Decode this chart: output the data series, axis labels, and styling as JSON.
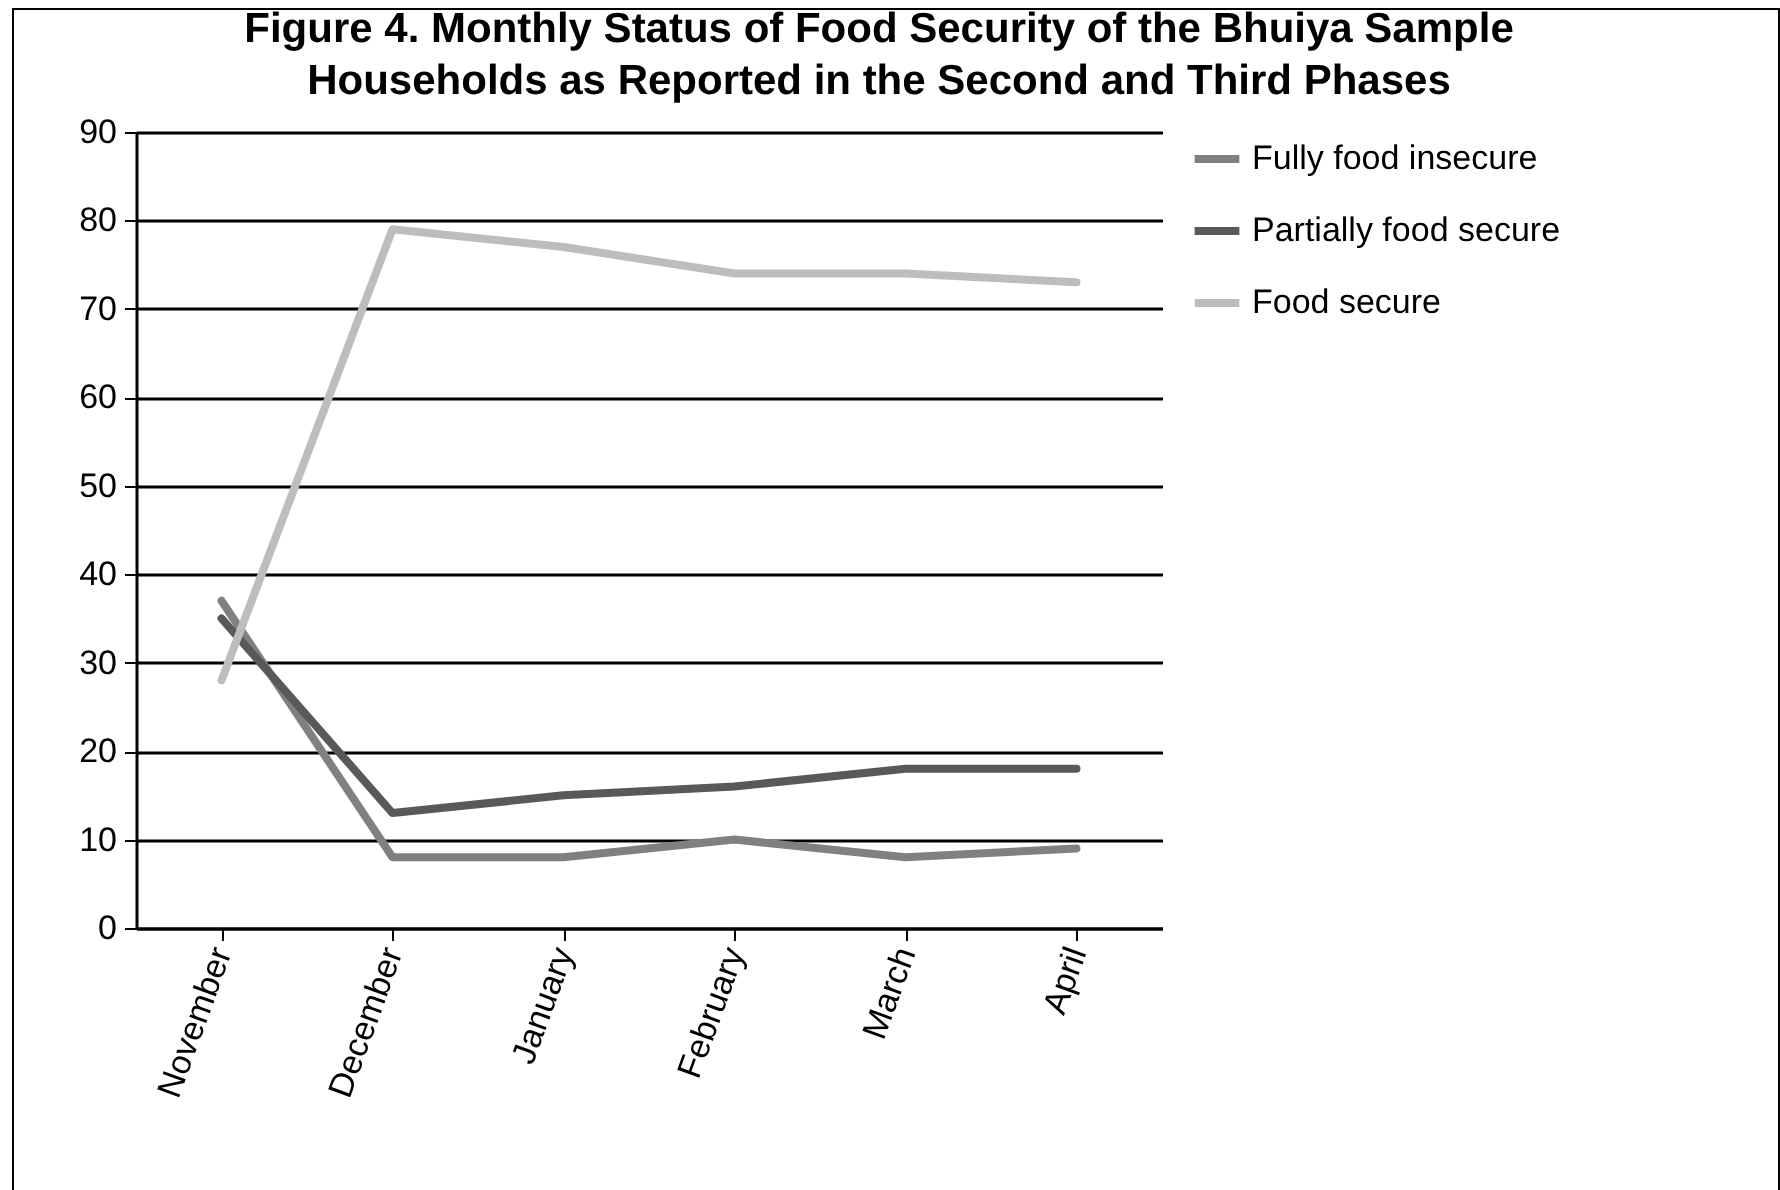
{
  "chart_data": {
    "type": "line",
    "title": "Figure 4. Monthly Status of Food Security of the Bhuiya Sample Households as Reported in the Second and Third Phases",
    "categories": [
      "November",
      "December",
      "January",
      "February",
      "March",
      "April"
    ],
    "series": [
      {
        "name": "Fully food insecure",
        "color": "#808083",
        "values": [
          37,
          8,
          8,
          10,
          8,
          9
        ]
      },
      {
        "name": "Partially food secure",
        "color": "#58595b",
        "values": [
          35,
          13,
          15,
          16,
          18,
          18
        ]
      },
      {
        "name": "Food secure",
        "color": "#bcbdc0",
        "values": [
          28,
          79,
          77,
          74,
          74,
          73
        ]
      }
    ],
    "ylim": [
      0,
      90
    ],
    "yticks": [
      0,
      10,
      20,
      30,
      40,
      50,
      60,
      70,
      80,
      90
    ],
    "grid": "y",
    "legend": "right",
    "marker": "none",
    "line_style": "solid"
  }
}
